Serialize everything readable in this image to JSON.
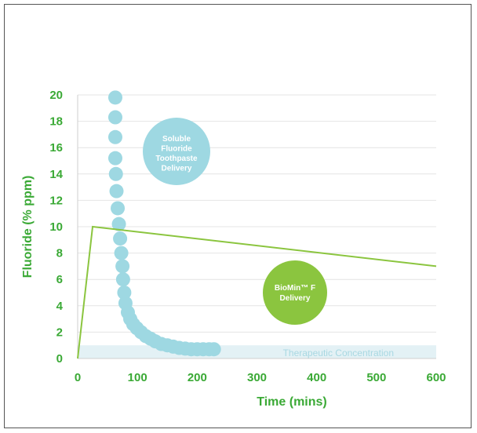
{
  "chart_data": {
    "type": "scatter",
    "xlabel": "Time (mins)",
    "ylabel": "Fluoride (% ppm)",
    "xlim": [
      0,
      600
    ],
    "ylim": [
      0,
      20
    ],
    "x_ticks": [
      0,
      100,
      200,
      300,
      400,
      500,
      600
    ],
    "y_ticks": [
      0,
      2,
      4,
      6,
      8,
      10,
      12,
      14,
      16,
      18,
      20
    ],
    "grid": true,
    "threshold_band": {
      "label": "Therapeutic Concentration",
      "y_range": [
        0,
        1
      ],
      "x_range": [
        0,
        600
      ],
      "color": "#e3f1f5"
    },
    "series": [
      {
        "name": "Soluble Fluoride Toothpaste Delivery",
        "color": "#9ed8e2",
        "points": [
          [
            63,
            19.8
          ],
          [
            63,
            18.3
          ],
          [
            63,
            16.8
          ],
          [
            63,
            15.2
          ],
          [
            64,
            14.0
          ],
          [
            65,
            12.7
          ],
          [
            67,
            11.4
          ],
          [
            69,
            10.2
          ],
          [
            71,
            9.1
          ],
          [
            73,
            8.0
          ],
          [
            75,
            7.0
          ],
          [
            76,
            6.0
          ],
          [
            78,
            5.0
          ],
          [
            80,
            4.2
          ],
          [
            84,
            3.5
          ],
          [
            88,
            3.0
          ],
          [
            93,
            2.6
          ],
          [
            99,
            2.3
          ],
          [
            106,
            2.0
          ],
          [
            114,
            1.7
          ],
          [
            122,
            1.5
          ],
          [
            130,
            1.3
          ],
          [
            140,
            1.1
          ],
          [
            150,
            1.0
          ],
          [
            160,
            0.9
          ],
          [
            170,
            0.8
          ],
          [
            180,
            0.75
          ],
          [
            190,
            0.7
          ],
          [
            200,
            0.7
          ],
          [
            210,
            0.7
          ],
          [
            220,
            0.7
          ],
          [
            228,
            0.7
          ]
        ]
      },
      {
        "name": "BioMin™ F Delivery",
        "type": "line",
        "color": "#8bc53f",
        "x": [
          0,
          25,
          600
        ],
        "y": [
          0,
          10,
          7
        ]
      }
    ],
    "labels": {
      "soluble": [
        "Soluble",
        "Fluoride",
        "Toothpaste",
        "Delivery"
      ],
      "biomin": [
        "BioMin™ F",
        "Delivery"
      ]
    }
  }
}
